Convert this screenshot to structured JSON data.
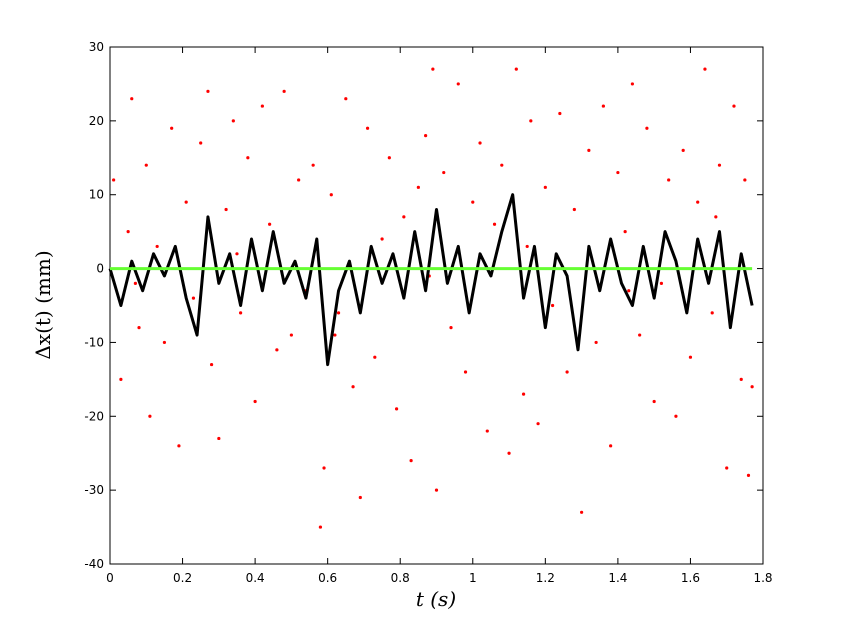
{
  "chart_data": {
    "type": "line",
    "xlabel": "t (s)",
    "ylabel": "Δx(t) (mm)",
    "xlim": [
      0,
      1.8
    ],
    "xticks": [
      0,
      0.2,
      0.4,
      0.6,
      0.8,
      1,
      1.2,
      1.4,
      1.6,
      1.8
    ],
    "ylim": [
      -40,
      30
    ],
    "yticks": [
      -40,
      -30,
      -20,
      -10,
      0,
      10,
      20,
      30
    ],
    "grid": false,
    "series": [
      {
        "mode": "markers",
        "color": "#ff0000",
        "x": [
          0.01,
          0.03,
          0.05,
          0.06,
          0.08,
          0.1,
          0.11,
          0.13,
          0.15,
          0.17,
          0.19,
          0.21,
          0.23,
          0.25,
          0.27,
          0.28,
          0.3,
          0.32,
          0.34,
          0.36,
          0.38,
          0.4,
          0.42,
          0.44,
          0.46,
          0.48,
          0.5,
          0.52,
          0.54,
          0.56,
          0.58,
          0.59,
          0.61,
          0.63,
          0.65,
          0.67,
          0.69,
          0.71,
          0.73,
          0.75,
          0.77,
          0.79,
          0.81,
          0.83,
          0.85,
          0.87,
          0.89,
          0.9,
          0.92,
          0.94,
          0.96,
          0.98,
          1.0,
          1.02,
          1.04,
          1.06,
          1.08,
          1.1,
          1.12,
          1.14,
          1.16,
          1.18,
          1.2,
          1.22,
          1.24,
          1.26,
          1.28,
          1.3,
          1.32,
          1.34,
          1.36,
          1.38,
          1.4,
          1.42,
          1.44,
          1.46,
          1.48,
          1.5,
          1.52,
          1.54,
          1.56,
          1.58,
          1.6,
          1.62,
          1.64,
          1.66,
          1.68,
          1.7,
          1.72,
          1.74,
          1.75,
          1.76,
          1.77,
          0.07,
          0.35,
          0.62,
          0.88,
          1.15,
          1.43,
          1.67
        ],
        "values": [
          12,
          -15,
          5,
          23,
          -8,
          14,
          -20,
          3,
          -10,
          19,
          -24,
          9,
          -4,
          17,
          24,
          -13,
          -23,
          8,
          20,
          -6,
          15,
          -18,
          22,
          6,
          -11,
          24,
          -9,
          12,
          -3,
          14,
          -35,
          -27,
          10,
          -6,
          23,
          -16,
          -31,
          19,
          -12,
          4,
          15,
          -19,
          7,
          -26,
          11,
          18,
          27,
          -30,
          13,
          -8,
          25,
          -14,
          9,
          17,
          -22,
          6,
          14,
          -25,
          27,
          -17,
          20,
          -21,
          11,
          -5,
          21,
          -14,
          8,
          -33,
          16,
          -10,
          22,
          -24,
          13,
          5,
          25,
          -9,
          19,
          -18,
          -2,
          12,
          -20,
          16,
          -12,
          9,
          27,
          -6,
          14,
          -27,
          22,
          -15,
          12,
          -28,
          -16,
          -2,
          2,
          -9,
          -1,
          3,
          -3,
          7
        ]
      },
      {
        "mode": "line",
        "color": "#000000",
        "width": 3,
        "x": [
          0,
          0.03,
          0.06,
          0.09,
          0.12,
          0.15,
          0.18,
          0.21,
          0.24,
          0.27,
          0.3,
          0.33,
          0.36,
          0.39,
          0.42,
          0.45,
          0.48,
          0.51,
          0.54,
          0.57,
          0.6,
          0.63,
          0.66,
          0.69,
          0.72,
          0.75,
          0.78,
          0.81,
          0.84,
          0.87,
          0.9,
          0.93,
          0.96,
          0.99,
          1.02,
          1.05,
          1.08,
          1.11,
          1.14,
          1.17,
          1.2,
          1.23,
          1.26,
          1.29,
          1.32,
          1.35,
          1.38,
          1.41,
          1.44,
          1.47,
          1.5,
          1.53,
          1.56,
          1.59,
          1.62,
          1.65,
          1.68,
          1.71,
          1.74,
          1.77
        ],
        "values": [
          0,
          -5,
          1,
          -3,
          2,
          -1,
          3,
          -4,
          -9,
          7,
          -2,
          2,
          -5,
          4,
          -3,
          5,
          -2,
          1,
          -4,
          4,
          -13,
          -3,
          1,
          -6,
          3,
          -2,
          2,
          -4,
          5,
          -3,
          8,
          -2,
          3,
          -6,
          2,
          -1,
          5,
          10,
          -4,
          3,
          -8,
          2,
          -1,
          -11,
          3,
          -3,
          4,
          -2,
          -5,
          3,
          -4,
          5,
          1,
          -6,
          4,
          -2,
          5,
          -8,
          2,
          -5
        ]
      },
      {
        "mode": "line",
        "color": "#66ff33",
        "width": 3,
        "x": [
          0,
          1.77
        ],
        "values": [
          0,
          0
        ]
      }
    ]
  }
}
